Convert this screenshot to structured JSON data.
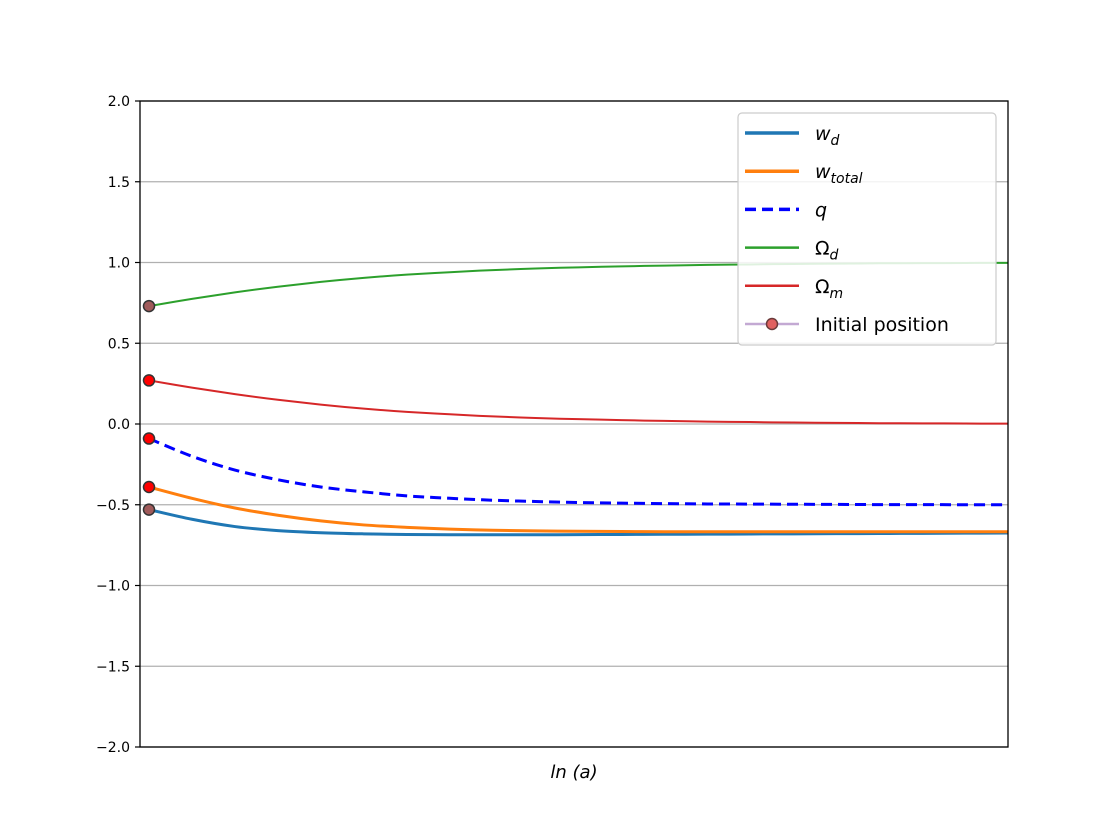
{
  "chart_data": {
    "type": "line",
    "title": "",
    "xlabel": "ln (a)",
    "ylabel": "",
    "ylim": [
      -2.0,
      2.0
    ],
    "yticks": [
      -2.0,
      -1.5,
      -1.0,
      -0.5,
      0.0,
      0.5,
      1.0,
      1.5,
      2.0
    ],
    "ytick_labels": [
      "−2.0",
      "−1.5",
      "−1.0",
      "−0.5",
      "0.0",
      "0.5",
      "1.0",
      "1.5",
      "2.0"
    ],
    "xticks_visible": false,
    "grid": "horizontal",
    "legend_position": "top-right",
    "x": [
      0,
      0.05,
      0.1,
      0.15,
      0.2,
      0.25,
      0.3,
      0.35,
      0.4,
      0.45,
      0.5,
      0.55,
      0.6,
      0.65,
      0.7,
      0.75,
      0.8,
      0.85,
      0.9,
      0.95,
      1.0
    ],
    "series": [
      {
        "name": "w_d",
        "color": "#1f77b4",
        "style": "solid",
        "width": 3,
        "values": [
          -0.53,
          -0.59,
          -0.635,
          -0.66,
          -0.673,
          -0.68,
          -0.684,
          -0.686,
          -0.686,
          -0.686,
          -0.685,
          -0.684,
          -0.683,
          -0.682,
          -0.681,
          -0.68,
          -0.679,
          -0.678,
          -0.677,
          -0.676,
          -0.675
        ]
      },
      {
        "name": "w_total",
        "color": "#ff7f0e",
        "style": "solid",
        "width": 3,
        "values": [
          -0.39,
          -0.46,
          -0.52,
          -0.565,
          -0.6,
          -0.625,
          -0.64,
          -0.651,
          -0.658,
          -0.662,
          -0.664,
          -0.666,
          -0.667,
          -0.667,
          -0.667,
          -0.667,
          -0.667,
          -0.667,
          -0.667,
          -0.667,
          -0.667
        ]
      },
      {
        "name": "q",
        "color": "#0000ff",
        "style": "dashed",
        "width": 3,
        "values": [
          -0.09,
          -0.2,
          -0.285,
          -0.345,
          -0.39,
          -0.42,
          -0.445,
          -0.46,
          -0.472,
          -0.48,
          -0.486,
          -0.49,
          -0.493,
          -0.495,
          -0.496,
          -0.497,
          -0.498,
          -0.499,
          -0.499,
          -0.5,
          -0.5
        ]
      },
      {
        "name": "Ω_d",
        "color": "#2ca02c",
        "style": "solid",
        "width": 2,
        "values": [
          0.73,
          0.775,
          0.815,
          0.85,
          0.88,
          0.905,
          0.925,
          0.94,
          0.953,
          0.963,
          0.97,
          0.976,
          0.981,
          0.985,
          0.988,
          0.991,
          0.993,
          0.995,
          0.996,
          0.997,
          0.998
        ]
      },
      {
        "name": "Ω_m",
        "color": "#d62728",
        "style": "solid",
        "width": 2,
        "values": [
          0.27,
          0.225,
          0.185,
          0.15,
          0.12,
          0.095,
          0.075,
          0.06,
          0.047,
          0.037,
          0.03,
          0.024,
          0.019,
          0.015,
          0.012,
          0.009,
          0.007,
          0.005,
          0.004,
          0.003,
          0.002
        ]
      }
    ],
    "initial_positions": [
      {
        "series": "w_d",
        "y": -0.53,
        "color": "#a05a5a"
      },
      {
        "series": "w_total",
        "y": -0.39,
        "color": "#ff0000"
      },
      {
        "series": "q",
        "y": -0.09,
        "color": "#ff0000"
      },
      {
        "series": "Ω_d",
        "y": 0.73,
        "color": "#a05a5a"
      },
      {
        "series": "Ω_m",
        "y": 0.27,
        "color": "#ff0000"
      }
    ],
    "legend": [
      {
        "label_base": "w",
        "label_sub": "d",
        "italic": true,
        "color": "#1f77b4",
        "style": "solid",
        "width": 3
      },
      {
        "label_base": "w",
        "label_sub": "total",
        "italic": true,
        "color": "#ff7f0e",
        "style": "solid",
        "width": 3
      },
      {
        "label_base": "q",
        "label_sub": "",
        "italic": true,
        "color": "#0000ff",
        "style": "dashed",
        "width": 3
      },
      {
        "label_base": "Ω",
        "label_sub": "d",
        "italic": false,
        "color": "#2ca02c",
        "style": "solid",
        "width": 2
      },
      {
        "label_base": "Ω",
        "label_sub": "m",
        "italic": false,
        "color": "#d62728",
        "style": "solid",
        "width": 2
      },
      {
        "label_base": "Initial position",
        "label_sub": "",
        "italic": false,
        "color": "#c3a9d3",
        "style": "marker",
        "width": 2
      }
    ]
  }
}
